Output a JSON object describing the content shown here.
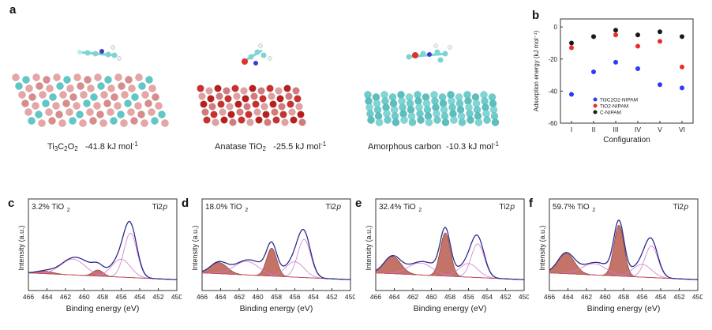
{
  "panel_a": {
    "label": "a",
    "structures": [
      {
        "name": "Ti3C2O2",
        "energy": "-41.8 kJ mol",
        "sup": "-1"
      },
      {
        "name": "Anatase TiO",
        "sub": "2",
        "energy": "-25.5 kJ mol",
        "sup": "-1"
      },
      {
        "name": "Amorphous carbon",
        "energy": "-10.3 kJ mol",
        "sup": "-1"
      }
    ],
    "ti_main": "Ti",
    "ti_sub1": "3",
    "ti_c": "C",
    "ti_sub2": "2",
    "ti_o": "O",
    "ti_sub3": "2"
  },
  "chart_data": [
    {
      "panel": "b",
      "type": "scatter",
      "xlabel": "Configuration",
      "ylabel": "Adsorption energy (kJ mol⁻¹)",
      "categories": [
        "I",
        "II",
        "III",
        "IV",
        "V",
        "VI"
      ],
      "ylim": [
        -60,
        5
      ],
      "yticks": [
        0,
        -20,
        -40,
        -60
      ],
      "legend_position": "bottom-center",
      "series": [
        {
          "name": "Ti3C2O2-NIPAM",
          "color": "#2b3cf5",
          "values": [
            -42,
            -28,
            -22,
            -26,
            -36,
            -38
          ]
        },
        {
          "name": "TiO2-NIPAM",
          "color": "#f02a2a",
          "values": [
            -13,
            -6,
            -5,
            -12,
            -9,
            -25
          ]
        },
        {
          "name": "C-NIPAM",
          "color": "#1a1a1a",
          "values": [
            -10,
            -6,
            -2,
            -5,
            -3,
            -6
          ]
        }
      ]
    },
    {
      "panel": "c",
      "type": "line",
      "label": "3.2% TiO",
      "sub": "2",
      "core": "Ti2",
      "core_italic": "p",
      "xlabel": "Binding energy (eV)",
      "ylabel": "Intensity (a.u.)",
      "xticks": [
        466,
        464,
        462,
        460,
        458,
        456,
        454,
        452,
        450
      ],
      "xlim": [
        466,
        450
      ],
      "tio2_peak": {
        "center": 458.5,
        "height": 0.12
      }
    },
    {
      "panel": "d",
      "type": "line",
      "label": "18.0% TiO",
      "sub": "2",
      "core": "Ti2",
      "core_italic": "p",
      "xlabel": "Binding energy (eV)",
      "ylabel": "Intensity (a.u.)",
      "xticks": [
        466,
        464,
        462,
        460,
        458,
        456,
        454,
        452,
        450
      ],
      "xlim": [
        466,
        450
      ],
      "tio2_peak": {
        "center": 458.5,
        "height": 0.55
      }
    },
    {
      "panel": "e",
      "type": "line",
      "label": "32.4% TiO",
      "sub": "2",
      "core": "Ti2",
      "core_italic": "p",
      "xlabel": "Binding energy (eV)",
      "ylabel": "Intensity (a.u.)",
      "xticks": [
        466,
        464,
        462,
        460,
        458,
        456,
        454,
        452,
        450
      ],
      "xlim": [
        466,
        450
      ],
      "tio2_peak": {
        "center": 458.5,
        "height": 0.85
      }
    },
    {
      "panel": "f",
      "type": "line",
      "label": "59.7% TiO",
      "sub": "2",
      "core": "Ti2",
      "core_italic": "p",
      "xlabel": "Binding energy (eV)",
      "ylabel": "Intensity (a.u.)",
      "xticks": [
        466,
        464,
        462,
        460,
        458,
        456,
        454,
        452,
        450
      ],
      "xlim": [
        466,
        450
      ],
      "tio2_peak": {
        "center": 458.5,
        "height": 1.0
      }
    }
  ]
}
